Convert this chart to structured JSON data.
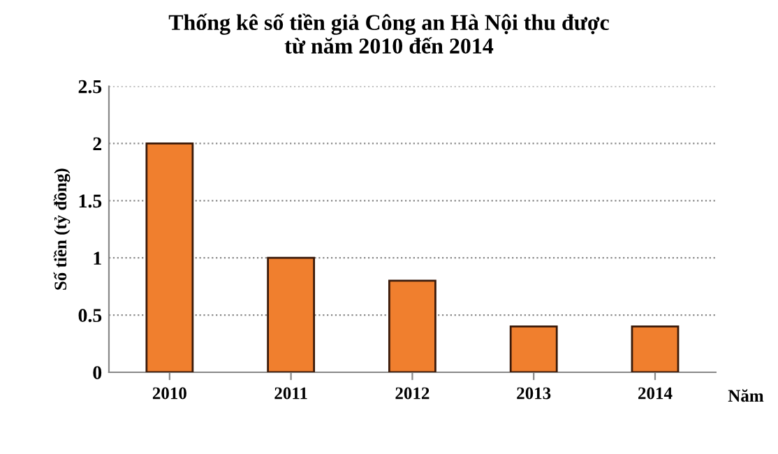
{
  "chart_data": {
    "type": "bar",
    "title": "Thống kê số tiền giả Công an Hà Nội thu được\ntừ năm 2010 đến 2014",
    "xlabel": "Năm",
    "ylabel": "Số tiền (tỷ đồng)",
    "categories": [
      "2010",
      "2011",
      "2012",
      "2013",
      "2014"
    ],
    "values": [
      2,
      1,
      0.8,
      0.4,
      0.4
    ],
    "color": "#f07f2e",
    "ylim": [
      0,
      2.5
    ],
    "yticks": [
      0,
      {
        "value": 0.5,
        "label": "0.5"
      },
      1,
      {
        "value": 1.5,
        "label": "1.5"
      },
      2,
      {
        "value": 2.5,
        "label": "2.5"
      }
    ],
    "grid": "y"
  }
}
